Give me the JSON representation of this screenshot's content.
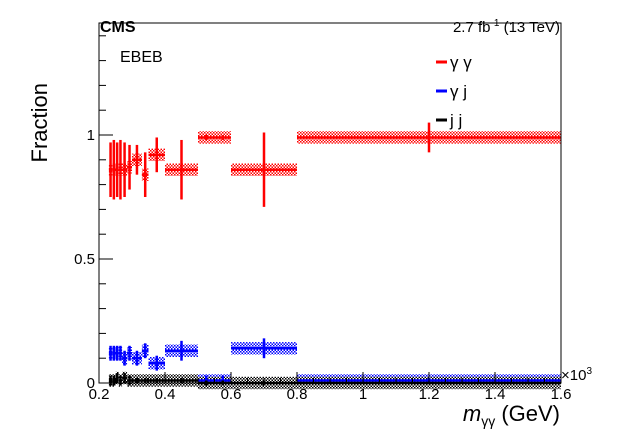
{
  "header": {
    "experiment": "CMS",
    "lumi_value": "2.7 fb",
    "lumi_exp": "-1",
    "energy": " (13 TeV)",
    "category": "EBEB"
  },
  "axes": {
    "ylabel": "Fraction",
    "xlabel_sym": "m",
    "xlabel_sub": "γγ",
    "xlabel_unit": " (GeV)",
    "x_multiplier_base": "×10",
    "x_multiplier_exp": "3"
  },
  "colors": {
    "gg": "#ff0000",
    "gj": "#0000ff",
    "jj": "#000000"
  },
  "chart_data": {
    "type": "scatter",
    "xlim": [
      0.2,
      1.6
    ],
    "ylim": [
      0,
      1.0
    ],
    "x_ticks": [
      0.2,
      0.4,
      0.6,
      0.8,
      1,
      1.2,
      1.4,
      1.6
    ],
    "x_tick_labels": [
      "0.2",
      "0.4",
      "0.6",
      "0.8",
      "1",
      "1.2",
      "1.4",
      "1.6"
    ],
    "y_ticks": [
      0,
      0.5,
      1
    ],
    "y_tick_labels": [
      "0",
      "0.5",
      "1"
    ],
    "legend_position": "top-right",
    "grid": false,
    "series": [
      {
        "name": "γ γ",
        "key": "gg",
        "points": [
          {
            "x0": 0.23,
            "x1": 0.24,
            "y": 0.86,
            "err": 0.11
          },
          {
            "x0": 0.24,
            "x1": 0.25,
            "y": 0.86,
            "err": 0.12
          },
          {
            "x0": 0.25,
            "x1": 0.26,
            "y": 0.86,
            "err": 0.11
          },
          {
            "x0": 0.26,
            "x1": 0.27,
            "y": 0.86,
            "err": 0.12
          },
          {
            "x0": 0.27,
            "x1": 0.285,
            "y": 0.86,
            "err": 0.11
          },
          {
            "x0": 0.285,
            "x1": 0.3,
            "y": 0.87,
            "err": 0.09
          },
          {
            "x0": 0.3,
            "x1": 0.33,
            "y": 0.9,
            "err": 0.06
          },
          {
            "x0": 0.33,
            "x1": 0.35,
            "y": 0.84,
            "err": 0.09
          },
          {
            "x0": 0.35,
            "x1": 0.4,
            "y": 0.92,
            "err": 0.07
          },
          {
            "x0": 0.4,
            "x1": 0.5,
            "y": 0.86,
            "err": 0.12
          },
          {
            "x0": 0.5,
            "x1": 0.55,
            "y": 0.99,
            "err": 0.01
          },
          {
            "x0": 0.55,
            "x1": 0.6,
            "y": 0.99,
            "err": 0.01
          },
          {
            "x0": 0.6,
            "x1": 0.8,
            "y": 0.86,
            "err": 0.15
          },
          {
            "x0": 0.8,
            "x1": 1.6,
            "y": 0.99,
            "err": 0.06
          }
        ]
      },
      {
        "name": "γ j",
        "key": "gj",
        "points": [
          {
            "x0": 0.23,
            "x1": 0.24,
            "y": 0.12,
            "err": 0.03
          },
          {
            "x0": 0.24,
            "x1": 0.25,
            "y": 0.12,
            "err": 0.03
          },
          {
            "x0": 0.25,
            "x1": 0.26,
            "y": 0.12,
            "err": 0.03
          },
          {
            "x0": 0.26,
            "x1": 0.27,
            "y": 0.12,
            "err": 0.03
          },
          {
            "x0": 0.27,
            "x1": 0.285,
            "y": 0.1,
            "err": 0.03
          },
          {
            "x0": 0.285,
            "x1": 0.3,
            "y": 0.12,
            "err": 0.03
          },
          {
            "x0": 0.3,
            "x1": 0.33,
            "y": 0.1,
            "err": 0.03
          },
          {
            "x0": 0.33,
            "x1": 0.35,
            "y": 0.13,
            "err": 0.03
          },
          {
            "x0": 0.35,
            "x1": 0.4,
            "y": 0.08,
            "err": 0.03
          },
          {
            "x0": 0.4,
            "x1": 0.5,
            "y": 0.13,
            "err": 0.04
          },
          {
            "x0": 0.5,
            "x1": 0.55,
            "y": 0.01,
            "err": 0.02
          },
          {
            "x0": 0.55,
            "x1": 0.6,
            "y": 0.01,
            "err": 0.02
          },
          {
            "x0": 0.6,
            "x1": 0.8,
            "y": 0.14,
            "err": 0.04
          },
          {
            "x0": 0.8,
            "x1": 1.6,
            "y": 0.01,
            "err": 0.01
          }
        ]
      },
      {
        "name": "j j",
        "key": "jj",
        "points": [
          {
            "x0": 0.23,
            "x1": 0.24,
            "y": 0.01,
            "err": 0.02
          },
          {
            "x0": 0.24,
            "x1": 0.25,
            "y": 0.01,
            "err": 0.02
          },
          {
            "x0": 0.25,
            "x1": 0.26,
            "y": 0.02,
            "err": 0.02
          },
          {
            "x0": 0.26,
            "x1": 0.27,
            "y": 0.01,
            "err": 0.02
          },
          {
            "x0": 0.27,
            "x1": 0.285,
            "y": 0.02,
            "err": 0.02
          },
          {
            "x0": 0.285,
            "x1": 0.3,
            "y": 0.01,
            "err": 0.02
          },
          {
            "x0": 0.3,
            "x1": 0.33,
            "y": 0.01,
            "err": 0.01
          },
          {
            "x0": 0.33,
            "x1": 0.35,
            "y": 0.01,
            "err": 0.01
          },
          {
            "x0": 0.35,
            "x1": 0.4,
            "y": 0.01,
            "err": 0.01
          },
          {
            "x0": 0.4,
            "x1": 0.5,
            "y": 0.01,
            "err": 0.01
          },
          {
            "x0": 0.5,
            "x1": 0.55,
            "y": 0.0,
            "err": 0.01
          },
          {
            "x0": 0.55,
            "x1": 0.6,
            "y": 0.0,
            "err": 0.01
          },
          {
            "x0": 0.6,
            "x1": 0.8,
            "y": 0.0,
            "err": 0.01
          },
          {
            "x0": 0.8,
            "x1": 1.6,
            "y": 0.0,
            "err": 0.005
          }
        ]
      }
    ]
  }
}
